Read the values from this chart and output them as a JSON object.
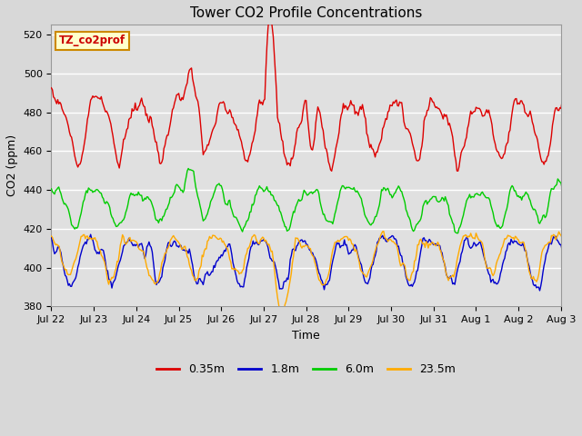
{
  "title": "Tower CO2 Profile Concentrations",
  "xlabel": "Time",
  "ylabel": "CO2 (ppm)",
  "ylim": [
    380,
    525
  ],
  "yticks": [
    380,
    400,
    420,
    440,
    460,
    480,
    500,
    520
  ],
  "legend_label": "TZ_co2prof",
  "legend_box_color": "#ffffcc",
  "legend_box_edge": "#cc8800",
  "series": [
    "0.35m",
    "1.8m",
    "6.0m",
    "23.5m"
  ],
  "colors": [
    "#dd0000",
    "#0000cc",
    "#00cc00",
    "#ffaa00"
  ],
  "fig_bg_color": "#d8d8d8",
  "plot_bg_color": "#e0e0e0",
  "grid_color": "#ffffff",
  "n_points": 500
}
